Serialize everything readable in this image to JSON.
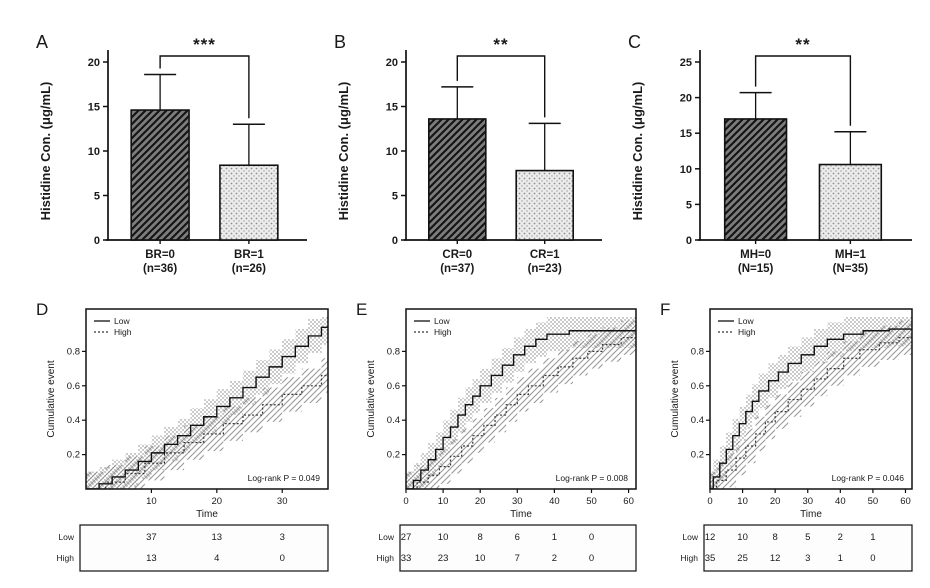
{
  "figure": {
    "background": "#ffffff",
    "ink": "#1a1a1a",
    "panel_letters": [
      "A",
      "B",
      "C",
      "D",
      "E",
      "F"
    ]
  },
  "chart_data": [
    {
      "panel": "A",
      "type": "bar",
      "ylabel": "Histidine Con. (μg/mL)",
      "ylim": [
        0,
        20
      ],
      "yticks": [
        0,
        5,
        10,
        15,
        20
      ],
      "significance": "***",
      "bars": [
        {
          "label": "BR=0",
          "sublabel": "(n=36)",
          "value": 14.6,
          "error_top": 18.6,
          "fill": "dark"
        },
        {
          "label": "BR=1",
          "sublabel": "(n=26)",
          "value": 8.4,
          "error_top": 13.0,
          "fill": "light"
        }
      ]
    },
    {
      "panel": "B",
      "type": "bar",
      "ylabel": "Histidine Con. (μg/mL)",
      "ylim": [
        0,
        20
      ],
      "yticks": [
        0,
        5,
        10,
        15,
        20
      ],
      "significance": "**",
      "bars": [
        {
          "label": "CR=0",
          "sublabel": "(n=37)",
          "value": 13.6,
          "error_top": 17.2,
          "fill": "dark"
        },
        {
          "label": "CR=1",
          "sublabel": "(n=23)",
          "value": 7.8,
          "error_top": 13.1,
          "fill": "light"
        }
      ]
    },
    {
      "panel": "C",
      "type": "bar",
      "ylabel": "Histidine Con. (μg/mL)",
      "ylim": [
        0,
        25
      ],
      "yticks": [
        0,
        5,
        10,
        15,
        20,
        25
      ],
      "significance": "**",
      "bars": [
        {
          "label": "MH=0",
          "sublabel": "(N=15)",
          "value": 17.0,
          "error_top": 20.7,
          "fill": "dark"
        },
        {
          "label": "MH=1",
          "sublabel": "(N=35)",
          "value": 10.6,
          "error_top": 15.2,
          "fill": "light"
        }
      ]
    },
    {
      "panel": "D",
      "type": "km",
      "ylabel": "Cumulative event",
      "xlabel": "Time",
      "ylim": [
        0,
        1
      ],
      "yticks": [
        0.2,
        0.4,
        0.6,
        0.8
      ],
      "xlim": [
        0,
        37
      ],
      "xticks": [
        10,
        20,
        30
      ],
      "legend": [
        {
          "name": "Low",
          "style": "solid"
        },
        {
          "name": "High",
          "style": "dotted"
        }
      ],
      "annotation": "Log-rank  P = 0.049",
      "band_halfwidth": 0.1,
      "series": [
        {
          "name": "Low",
          "style": "solid",
          "points": [
            [
              0,
              0
            ],
            [
              2,
              0.03
            ],
            [
              4,
              0.07
            ],
            [
              6,
              0.11
            ],
            [
              8,
              0.16
            ],
            [
              10,
              0.21
            ],
            [
              12,
              0.26
            ],
            [
              14,
              0.31
            ],
            [
              16,
              0.37
            ],
            [
              18,
              0.42
            ],
            [
              20,
              0.48
            ],
            [
              22,
              0.53
            ],
            [
              24,
              0.59
            ],
            [
              26,
              0.65
            ],
            [
              28,
              0.71
            ],
            [
              30,
              0.77
            ],
            [
              32,
              0.83
            ],
            [
              34,
              0.89
            ],
            [
              36,
              0.94
            ]
          ]
        },
        {
          "name": "High",
          "style": "dotted",
          "points": [
            [
              0,
              0
            ],
            [
              3,
              0.04
            ],
            [
              6,
              0.09
            ],
            [
              9,
              0.15
            ],
            [
              12,
              0.21
            ],
            [
              15,
              0.27
            ],
            [
              18,
              0.32
            ],
            [
              21,
              0.38
            ],
            [
              24,
              0.43
            ],
            [
              27,
              0.49
            ],
            [
              30,
              0.55
            ],
            [
              33,
              0.6
            ],
            [
              36,
              0.66
            ]
          ]
        }
      ],
      "risk_table": {
        "columns_at": [
          10,
          20,
          30
        ],
        "rows": [
          {
            "label": "Low",
            "values": [
              "37",
              "13",
              "3"
            ]
          },
          {
            "label": "High",
            "values": [
              "13",
              "4",
              "0"
            ]
          }
        ]
      }
    },
    {
      "panel": "E",
      "type": "km",
      "ylabel": "Cumulative event",
      "xlabel": "Time",
      "ylim": [
        0,
        1
      ],
      "yticks": [
        0.2,
        0.4,
        0.6,
        0.8
      ],
      "xlim": [
        0,
        62
      ],
      "xticks": [
        0,
        10,
        20,
        30,
        40,
        50,
        60
      ],
      "legend": [
        {
          "name": "Low",
          "style": "solid"
        },
        {
          "name": "High",
          "style": "dotted"
        }
      ],
      "annotation": "Log-rank  P = 0.008",
      "band_halfwidth": 0.1,
      "series": [
        {
          "name": "Low",
          "style": "solid",
          "points": [
            [
              0,
              0
            ],
            [
              2,
              0.05
            ],
            [
              4,
              0.11
            ],
            [
              6,
              0.17
            ],
            [
              8,
              0.23
            ],
            [
              10,
              0.3
            ],
            [
              12,
              0.36
            ],
            [
              14,
              0.43
            ],
            [
              16,
              0.49
            ],
            [
              18,
              0.54
            ],
            [
              20,
              0.6
            ],
            [
              23,
              0.66
            ],
            [
              26,
              0.72
            ],
            [
              29,
              0.78
            ],
            [
              32,
              0.83
            ],
            [
              35,
              0.87
            ],
            [
              38,
              0.9
            ],
            [
              44,
              0.92
            ],
            [
              52,
              0.92
            ]
          ]
        },
        {
          "name": "High",
          "style": "dotted",
          "points": [
            [
              0,
              0
            ],
            [
              3,
              0.04
            ],
            [
              6,
              0.08
            ],
            [
              9,
              0.13
            ],
            [
              12,
              0.19
            ],
            [
              15,
              0.25
            ],
            [
              18,
              0.31
            ],
            [
              21,
              0.37
            ],
            [
              24,
              0.43
            ],
            [
              27,
              0.49
            ],
            [
              30,
              0.55
            ],
            [
              33,
              0.6
            ],
            [
              37,
              0.66
            ],
            [
              41,
              0.71
            ],
            [
              45,
              0.76
            ],
            [
              49,
              0.8
            ],
            [
              53,
              0.84
            ],
            [
              58,
              0.88
            ]
          ]
        }
      ],
      "risk_table": {
        "columns_at": [
          0,
          10,
          20,
          30,
          40,
          50
        ],
        "rows": [
          {
            "label": "Low",
            "values": [
              "27",
              "10",
              "8",
              "6",
              "1",
              "0"
            ]
          },
          {
            "label": "High",
            "values": [
              "33",
              "23",
              "10",
              "7",
              "2",
              "0"
            ]
          }
        ]
      }
    },
    {
      "panel": "F",
      "type": "km",
      "ylabel": "Cumulative event",
      "xlabel": "Time",
      "ylim": [
        0,
        1
      ],
      "yticks": [
        0.2,
        0.4,
        0.6,
        0.8
      ],
      "xlim": [
        0,
        62
      ],
      "xticks": [
        0,
        10,
        20,
        30,
        40,
        50,
        60
      ],
      "legend": [
        {
          "name": "Low",
          "style": "solid"
        },
        {
          "name": "High",
          "style": "dotted"
        }
      ],
      "annotation": "Log-rank  P = 0.046",
      "band_halfwidth": 0.1,
      "series": [
        {
          "name": "Low",
          "style": "solid",
          "points": [
            [
              0,
              0
            ],
            [
              1,
              0.07
            ],
            [
              3,
              0.15
            ],
            [
              5,
              0.23
            ],
            [
              7,
              0.31
            ],
            [
              9,
              0.38
            ],
            [
              11,
              0.45
            ],
            [
              13,
              0.51
            ],
            [
              15,
              0.57
            ],
            [
              18,
              0.63
            ],
            [
              21,
              0.68
            ],
            [
              24,
              0.73
            ],
            [
              28,
              0.78
            ],
            [
              32,
              0.83
            ],
            [
              36,
              0.87
            ],
            [
              41,
              0.9
            ],
            [
              47,
              0.92
            ],
            [
              55,
              0.93
            ]
          ]
        },
        {
          "name": "High",
          "style": "dotted",
          "points": [
            [
              0,
              0
            ],
            [
              2,
              0.05
            ],
            [
              5,
              0.11
            ],
            [
              8,
              0.18
            ],
            [
              11,
              0.25
            ],
            [
              14,
              0.32
            ],
            [
              17,
              0.39
            ],
            [
              20,
              0.45
            ],
            [
              24,
              0.52
            ],
            [
              28,
              0.58
            ],
            [
              32,
              0.64
            ],
            [
              36,
              0.7
            ],
            [
              41,
              0.76
            ],
            [
              46,
              0.81
            ],
            [
              52,
              0.85
            ],
            [
              58,
              0.88
            ]
          ]
        }
      ],
      "risk_table": {
        "columns_at": [
          0,
          10,
          20,
          30,
          40,
          50
        ],
        "rows": [
          {
            "label": "Low",
            "values": [
              "12",
              "10",
              "8",
              "5",
              "2",
              "1"
            ]
          },
          {
            "label": "High",
            "values": [
              "35",
              "25",
              "12",
              "3",
              "1",
              "0"
            ]
          }
        ]
      }
    }
  ]
}
